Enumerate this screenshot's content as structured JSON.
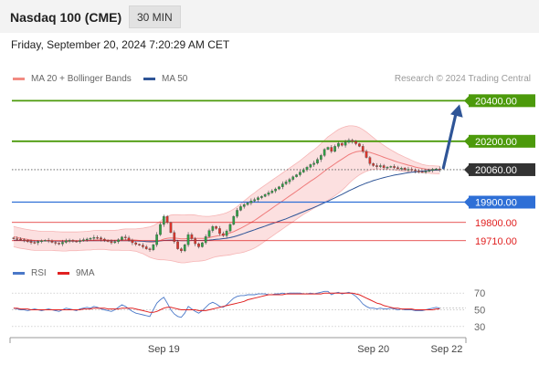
{
  "header": {
    "title": "Nasdaq 100 (CME)",
    "interval": "30 MIN",
    "datetime": "Friday, September 20, 2024 7:20:29 AM CET"
  },
  "legend": {
    "items": [
      {
        "label": "MA 20 + Bollinger Bands",
        "color": "#f28b82"
      },
      {
        "label": "MA 50",
        "color": "#2f5597"
      }
    ],
    "credit": "Research © 2024 Trading Central"
  },
  "rsi_legend": {
    "items": [
      {
        "label": "RSI",
        "color": "#4a78c8"
      },
      {
        "label": "9MA",
        "color": "#e02020"
      }
    ]
  },
  "chart_data": {
    "type": "candlestick",
    "price_ylim": [
      19610,
      20460
    ],
    "levels": [
      {
        "label": "20400.00",
        "value": 20400,
        "kind": "resistance",
        "color": "#4c9a0b"
      },
      {
        "label": "20200.00",
        "value": 20200,
        "kind": "resistance",
        "color": "#4c9a0b"
      },
      {
        "label": "20060.00",
        "value": 20060,
        "kind": "current",
        "color": "#333333"
      },
      {
        "label": "19900.00",
        "value": 19900,
        "kind": "pivot",
        "color": "#2e6fd6"
      },
      {
        "label": "19800.00",
        "value": 19800,
        "kind": "support",
        "color": "#e02020"
      },
      {
        "label": "19710.00",
        "value": 19710,
        "kind": "support",
        "color": "#e02020"
      }
    ],
    "x_ticks": [
      "Sep 19",
      "Sep 20",
      "Sep 22"
    ],
    "x_tick_index": [
      43,
      103,
      124
    ],
    "n_slots": 130,
    "closes": [
      19720,
      19718,
      19715,
      19712,
      19705,
      19702,
      19700,
      19705,
      19710,
      19712,
      19708,
      19702,
      19698,
      19694,
      19702,
      19710,
      19712,
      19708,
      19705,
      19710,
      19715,
      19718,
      19722,
      19726,
      19724,
      19718,
      19712,
      19706,
      19700,
      19705,
      19715,
      19728,
      19724,
      19712,
      19700,
      19692,
      19688,
      19680,
      19670,
      19665,
      19690,
      19740,
      19790,
      19830,
      19800,
      19750,
      19705,
      19670,
      19660,
      19690,
      19740,
      19720,
      19695,
      19680,
      19700,
      19730,
      19760,
      19780,
      19770,
      19745,
      19735,
      19758,
      19790,
      19830,
      19860,
      19878,
      19888,
      19896,
      19906,
      19912,
      19922,
      19928,
      19938,
      19946,
      19955,
      19965,
      19975,
      19990,
      20000,
      20012,
      20025,
      20035,
      20048,
      20060,
      20072,
      20085,
      20092,
      20110,
      20130,
      20160,
      20170,
      20150,
      20175,
      20190,
      20180,
      20195,
      20205,
      20200,
      20188,
      20175,
      20150,
      20120,
      20090,
      20080,
      20075,
      20080,
      20070,
      20072,
      20076,
      20070,
      20065,
      20068,
      20060,
      20062,
      20058,
      20054,
      20050,
      20048,
      20052,
      20056,
      20062,
      20064,
      20060
    ],
    "ma20": [
      19730,
      19726,
      19722,
      19719,
      19716,
      19713,
      19711,
      19710,
      19709,
      19709,
      19709,
      19709,
      19708,
      19707,
      19706,
      19706,
      19707,
      19707,
      19707,
      19708,
      19709,
      19710,
      19711,
      19713,
      19714,
      19714,
      19714,
      19713,
      19712,
      19712,
      19713,
      19714,
      19715,
      19715,
      19714,
      19713,
      19711,
      19709,
      19706,
      19703,
      19703,
      19706,
      19711,
      19718,
      19722,
      19724,
      19723,
      19721,
      19719,
      19719,
      19721,
      19722,
      19722,
      19721,
      19721,
      19722,
      19725,
      19729,
      19733,
      19736,
      19739,
      19743,
      19748,
      19755,
      19763,
      19771,
      19780,
      19790,
      19800,
      19810,
      19822,
      19834,
      19846,
      19858,
      19870,
      19882,
      19894,
      19906,
      19918,
      19930,
      19942,
      19954,
      19966,
      19979,
      19991,
      20003,
      20014,
      20026,
      20039,
      20053,
      20066,
      20077,
      20089,
      20101,
      20112,
      20123,
      20134,
      20142,
      20148,
      20151,
      20151,
      20149,
      20145,
      20140,
      20134,
      20128,
      20121,
      20115,
      20109,
      20103,
      20097,
      20092,
      20087,
      20082,
      20078,
      20073,
      20069,
      20066,
      20063,
      20061,
      20060,
      20059,
      20058
    ],
    "bb_upper": [
      19780,
      19776,
      19772,
      19768,
      19765,
      19762,
      19760,
      19758,
      19756,
      19756,
      19756,
      19756,
      19755,
      19754,
      19753,
      19753,
      19753,
      19753,
      19753,
      19754,
      19755,
      19756,
      19758,
      19760,
      19761,
      19761,
      19761,
      19761,
      19761,
      19761,
      19763,
      19766,
      19768,
      19768,
      19768,
      19768,
      19770,
      19772,
      19775,
      19778,
      19784,
      19794,
      19806,
      19820,
      19830,
      19836,
      19838,
      19838,
      19837,
      19837,
      19838,
      19838,
      19836,
      19833,
      19831,
      19830,
      19830,
      19832,
      19835,
      19838,
      19842,
      19848,
      19856,
      19866,
      19878,
      19892,
      19906,
      19920,
      19934,
      19946,
      19960,
      19972,
      19984,
      19996,
      20008,
      20020,
      20032,
      20044,
      20056,
      20068,
      20080,
      20092,
      20104,
      20118,
      20132,
      20146,
      20158,
      20172,
      20188,
      20206,
      20222,
      20234,
      20246,
      20258,
      20266,
      20272,
      20276,
      20276,
      20274,
      20268,
      20258,
      20246,
      20232,
      20218,
      20204,
      20192,
      20180,
      20168,
      20158,
      20148,
      20138,
      20130,
      20122,
      20114,
      20106,
      20098,
      20092,
      20086,
      20082,
      20080,
      20079,
      20078,
      20077
    ],
    "bb_lower": [
      19680,
      19676,
      19672,
      19670,
      19667,
      19664,
      19662,
      19662,
      19662,
      19662,
      19662,
      19662,
      19661,
      19660,
      19659,
      19659,
      19661,
      19661,
      19661,
      19662,
      19663,
      19664,
      19664,
      19666,
      19667,
      19667,
      19667,
      19665,
      19663,
      19663,
      19663,
      19662,
      19662,
      19662,
      19660,
      19658,
      19652,
      19646,
      19637,
      19628,
      19622,
      19618,
      19616,
      19616,
      19614,
      19612,
      19608,
      19604,
      19601,
      19601,
      19604,
      19606,
      19608,
      19609,
      19611,
      19614,
      19620,
      19626,
      19631,
      19634,
      19636,
      19638,
      19640,
      19644,
      19648,
      19650,
      19654,
      19660,
      19666,
      19674,
      19684,
      19696,
      19708,
      19720,
      19732,
      19744,
      19756,
      19768,
      19780,
      19792,
      19804,
      19816,
      19828,
      19840,
      19850,
      19860,
      19870,
      19880,
      19890,
      19900,
      19910,
      19920,
      19932,
      19944,
      19958,
      19974,
      19992,
      20008,
      20022,
      20034,
      20044,
      20052,
      20058,
      20062,
      20064,
      20064,
      20062,
      20062,
      20060,
      20058,
      20056,
      20054,
      20052,
      20050,
      20050,
      20048,
      20046,
      20046,
      20044,
      20042,
      20041,
      20040,
      20039
    ],
    "ma50": [
      19712,
      19711,
      19711,
      19710,
      19710,
      19709,
      19709,
      19709,
      19709,
      19709,
      19709,
      19709,
      19709,
      19709,
      19709,
      19709,
      19709,
      19709,
      19709,
      19709,
      19710,
      19710,
      19710,
      19710,
      19710,
      19710,
      19710,
      19710,
      19710,
      19710,
      19710,
      19710,
      19710,
      19710,
      19709,
      19709,
      19708,
      19707,
      19706,
      19706,
      19706,
      19707,
      19709,
      19711,
      19712,
      19713,
      19712,
      19711,
      19710,
      19710,
      19710,
      19711,
      19711,
      19711,
      19711,
      19712,
      19713,
      19715,
      19717,
      19718,
      19720,
      19722,
      19725,
      19729,
      19734,
      19740,
      19746,
      19752,
      19758,
      19764,
      19770,
      19776,
      19782,
      19788,
      19794,
      19800,
      19806,
      19812,
      19818,
      19825,
      19832,
      19839,
      19846,
      19853,
      19860,
      19867,
      19874,
      19881,
      19889,
      19897,
      19905,
      19913,
      19921,
      19930,
      19938,
      19947,
      19956,
      19964,
      19972,
      19980,
      19987,
      19994,
      20000,
      20006,
      20011,
      20016,
      20021,
      20025,
      20029,
      20033,
      20036,
      20039,
      20042,
      20045,
      20047,
      20049,
      20051,
      20053,
      20054,
      20056,
      20057,
      20058,
      20059
    ],
    "projection": {
      "from_value": 20060,
      "to_value": 20400
    },
    "rsi_ylim": [
      20,
      80
    ],
    "rsi_levels": [
      70,
      50,
      30
    ],
    "rsi": [
      52,
      51,
      50,
      50,
      49,
      50,
      51,
      50,
      49,
      50,
      51,
      50,
      49,
      48,
      50,
      52,
      51,
      50,
      49,
      51,
      52,
      53,
      52,
      54,
      53,
      51,
      50,
      49,
      48,
      50,
      53,
      56,
      54,
      51,
      48,
      46,
      45,
      44,
      43,
      42,
      50,
      58,
      62,
      65,
      58,
      50,
      45,
      42,
      41,
      46,
      54,
      51,
      48,
      46,
      49,
      53,
      57,
      59,
      57,
      54,
      53,
      56,
      60,
      64,
      66,
      67,
      67,
      68,
      68,
      68,
      69,
      69,
      69,
      68,
      68,
      69,
      69,
      70,
      69,
      70,
      70,
      70,
      70,
      69,
      69,
      70,
      69,
      70,
      71,
      72,
      72,
      68,
      70,
      71,
      69,
      70,
      71,
      69,
      66,
      62,
      57,
      54,
      52,
      52,
      51,
      52,
      51,
      51,
      52,
      51,
      50,
      51,
      50,
      50,
      50,
      49,
      49,
      49,
      50,
      51,
      52,
      53,
      52
    ],
    "rsi_ma": [
      52,
      52,
      51,
      51,
      51,
      50,
      50,
      50,
      50,
      50,
      50,
      50,
      50,
      50,
      50,
      50,
      50,
      50,
      50,
      50,
      51,
      51,
      51,
      52,
      52,
      52,
      52,
      51,
      51,
      51,
      51,
      52,
      52,
      52,
      52,
      51,
      50,
      49,
      48,
      47,
      47,
      48,
      50,
      52,
      53,
      53,
      52,
      51,
      50,
      50,
      50,
      50,
      50,
      49,
      49,
      49,
      50,
      51,
      52,
      53,
      54,
      55,
      56,
      57,
      58,
      59,
      60,
      62,
      63,
      64,
      65,
      66,
      67,
      68,
      68,
      68,
      68,
      68,
      69,
      69,
      69,
      69,
      69,
      69,
      69,
      69,
      69,
      69,
      69,
      70,
      70,
      70,
      70,
      70,
      70,
      70,
      70,
      70,
      69,
      68,
      66,
      64,
      62,
      60,
      58,
      57,
      55,
      54,
      53,
      52,
      52,
      51,
      51,
      51,
      51,
      50,
      50,
      50,
      50,
      50,
      50,
      51,
      51
    ],
    "rsi_last_value": 52
  }
}
